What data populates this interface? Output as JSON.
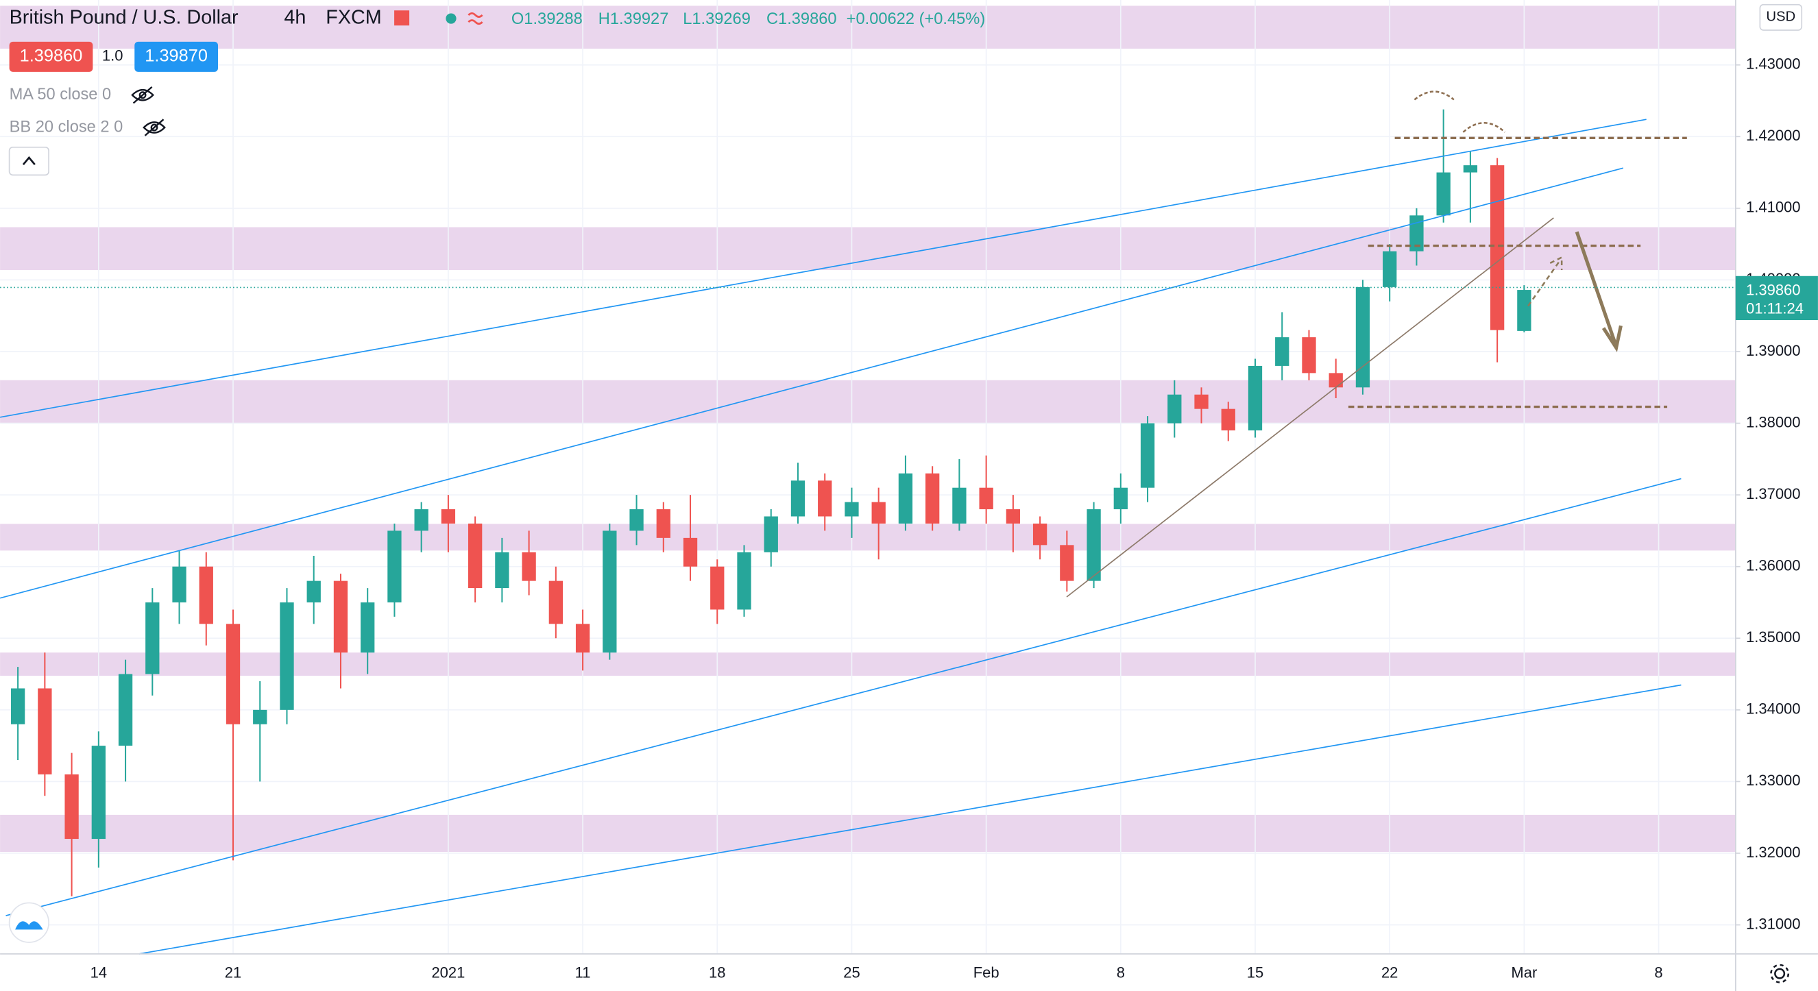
{
  "header": {
    "symbol": "British Pound / U.S. Dollar",
    "interval": "4h",
    "exchange": "FXCM",
    "open": "O1.39288",
    "high": "H1.39927",
    "low": "L1.39269",
    "close": "C1.39860",
    "change": "+0.00622 (+0.45%)",
    "sell": "1.39860",
    "spread": "1.0",
    "buy": "1.39870",
    "indicators": [
      "MA 50 close 0",
      "BB 20 close 2 0"
    ]
  },
  "chart_data": {
    "type": "candlestick",
    "currency": "USD",
    "categories": [
      null,
      null,
      null,
      "14",
      null,
      null,
      null,
      null,
      "21",
      null,
      null,
      null,
      null,
      null,
      null,
      null,
      "2021",
      null,
      null,
      null,
      null,
      "11",
      null,
      null,
      null,
      null,
      "18",
      null,
      null,
      null,
      null,
      "25",
      null,
      null,
      null,
      null,
      "Feb",
      null,
      null,
      null,
      null,
      "8",
      null,
      null,
      null,
      null,
      "15",
      null,
      null,
      null,
      null,
      "22",
      null,
      null,
      null,
      null,
      "Mar",
      null,
      null,
      null,
      null,
      "8"
    ],
    "open": [
      1.338,
      1.343,
      1.331,
      1.322,
      1.335,
      1.345,
      1.355,
      1.36,
      1.352,
      1.338,
      1.34,
      1.355,
      1.358,
      1.348,
      1.355,
      1.365,
      1.368,
      1.366,
      1.357,
      1.362,
      1.358,
      1.352,
      1.348,
      1.365,
      1.368,
      1.364,
      1.36,
      1.354,
      1.362,
      1.367,
      1.372,
      1.367,
      1.369,
      1.366,
      1.373,
      1.366,
      1.371,
      1.368,
      1.366,
      1.363,
      1.358,
      1.368,
      1.371,
      1.38,
      1.384,
      1.382,
      1.379,
      1.388,
      1.392,
      1.387,
      1.385,
      1.399,
      1.404,
      1.409,
      1.415,
      1.416,
      1.39288,
      null,
      null,
      null,
      null,
      null
    ],
    "high": [
      1.346,
      1.348,
      1.334,
      1.337,
      1.347,
      1.357,
      1.3622,
      1.362,
      1.354,
      1.344,
      1.357,
      1.3615,
      1.359,
      1.357,
      1.366,
      1.369,
      1.37,
      1.367,
      1.364,
      1.365,
      1.36,
      1.354,
      1.366,
      1.37,
      1.369,
      1.37,
      1.361,
      1.363,
      1.368,
      1.3745,
      1.373,
      1.371,
      1.371,
      1.3755,
      1.374,
      1.375,
      1.3755,
      1.37,
      1.367,
      1.365,
      1.369,
      1.373,
      1.381,
      1.386,
      1.385,
      1.383,
      1.389,
      1.3955,
      1.393,
      1.389,
      1.4,
      1.405,
      1.41,
      1.4238,
      1.418,
      1.417,
      1.39927,
      null,
      null,
      null,
      null,
      null
    ],
    "low": [
      1.333,
      1.328,
      1.314,
      1.318,
      1.33,
      1.342,
      1.352,
      1.349,
      1.319,
      1.33,
      1.338,
      1.352,
      1.343,
      1.345,
      1.353,
      1.362,
      1.362,
      1.355,
      1.355,
      1.356,
      1.35,
      1.3455,
      1.347,
      1.363,
      1.362,
      1.358,
      1.352,
      1.353,
      1.36,
      1.366,
      1.365,
      1.364,
      1.361,
      1.365,
      1.365,
      1.365,
      1.366,
      1.362,
      1.361,
      1.3565,
      1.357,
      1.366,
      1.369,
      1.378,
      1.38,
      1.3775,
      1.378,
      1.386,
      1.386,
      1.3835,
      1.384,
      1.397,
      1.402,
      1.408,
      1.408,
      1.3885,
      1.39269,
      null,
      null,
      null,
      null,
      null
    ],
    "close": [
      1.343,
      1.331,
      1.322,
      1.335,
      1.345,
      1.355,
      1.36,
      1.352,
      1.338,
      1.34,
      1.355,
      1.358,
      1.348,
      1.355,
      1.365,
      1.368,
      1.366,
      1.357,
      1.362,
      1.358,
      1.352,
      1.348,
      1.365,
      1.368,
      1.364,
      1.36,
      1.354,
      1.362,
      1.367,
      1.372,
      1.367,
      1.369,
      1.366,
      1.373,
      1.366,
      1.371,
      1.368,
      1.366,
      1.363,
      1.358,
      1.368,
      1.371,
      1.38,
      1.384,
      1.382,
      1.379,
      1.388,
      1.392,
      1.387,
      1.385,
      1.399,
      1.404,
      1.409,
      1.415,
      1.416,
      1.393,
      1.3986,
      null,
      null,
      null,
      null,
      null
    ],
    "up_color": "#26a69a",
    "down_color": "#ef5350",
    "ylim": [
      1.30595,
      1.43906
    ],
    "yticks": [
      {
        "value": 1.31,
        "label": "1.31000"
      },
      {
        "value": 1.32,
        "label": "1.32000"
      },
      {
        "value": 1.33,
        "label": "1.33000"
      },
      {
        "value": 1.34,
        "label": "1.34000"
      },
      {
        "value": 1.35,
        "label": "1.35000"
      },
      {
        "value": 1.36,
        "label": "1.36000"
      },
      {
        "value": 1.37,
        "label": "1.37000"
      },
      {
        "value": 1.38,
        "label": "1.38000"
      },
      {
        "value": 1.39,
        "label": "1.39000"
      },
      {
        "value": 1.4,
        "label": "1.40000"
      },
      {
        "value": 1.41,
        "label": "1.41000"
      },
      {
        "value": 1.42,
        "label": "1.42000"
      },
      {
        "value": 1.43,
        "label": "1.43000"
      }
    ],
    "grid": true,
    "last_price": {
      "value": 1.3986,
      "label": "1.39860",
      "countdown": "01:11:24"
    }
  }
}
